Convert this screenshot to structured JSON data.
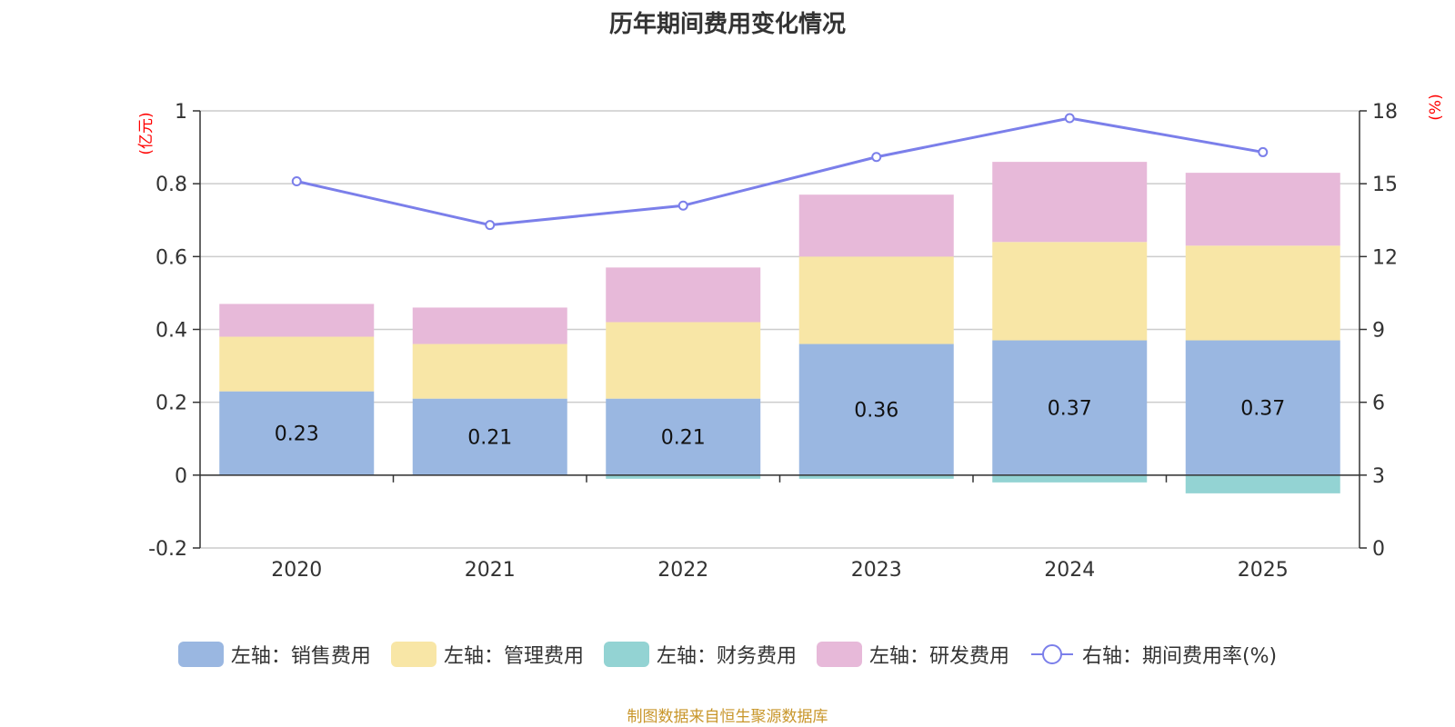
{
  "chart_data": {
    "type": "bar",
    "stacked": true,
    "title": "历年期间费用变化情况",
    "categories": [
      "2020",
      "2021",
      "2022",
      "2023",
      "2024",
      "2025"
    ],
    "left_axis": {
      "unit": "(亿元)",
      "ylim": [
        -0.2,
        1
      ],
      "ticks": [
        "-0.2",
        "0",
        "0.2",
        "0.4",
        "0.6",
        "0.8",
        "1"
      ],
      "tick_values": [
        -0.2,
        0,
        0.2,
        0.4,
        0.6,
        0.8,
        1
      ]
    },
    "right_axis": {
      "unit": "(%)",
      "ylim": [
        0,
        18
      ],
      "ticks": [
        "0",
        "3",
        "6",
        "9",
        "12",
        "15",
        "18"
      ],
      "tick_values": [
        0,
        3,
        6,
        9,
        12,
        15,
        18
      ]
    },
    "series": [
      {
        "name": "左轴：销售费用",
        "axis": "left",
        "type": "bar",
        "color": "#9ab7e1",
        "values": [
          0.23,
          0.21,
          0.21,
          0.36,
          0.37,
          0.37
        ],
        "labels": [
          "0.23",
          "0.21",
          "0.21",
          "0.36",
          "0.37",
          "0.37"
        ]
      },
      {
        "name": "左轴：管理费用",
        "axis": "left",
        "type": "bar",
        "color": "#f8e6a6",
        "values": [
          0.15,
          0.15,
          0.21,
          0.24,
          0.27,
          0.26
        ]
      },
      {
        "name": "左轴：财务费用",
        "axis": "left",
        "type": "bar",
        "color": "#93d3d3",
        "values": [
          0.0,
          0.0,
          -0.01,
          -0.01,
          -0.02,
          -0.05
        ]
      },
      {
        "name": "左轴：研发费用",
        "axis": "left",
        "type": "bar",
        "color": "#e7b9d9",
        "values": [
          0.09,
          0.1,
          0.15,
          0.17,
          0.22,
          0.2
        ]
      },
      {
        "name": "右轴：期间费用率(%)",
        "axis": "right",
        "type": "line",
        "color": "#7b7fea",
        "values": [
          15.1,
          13.3,
          14.1,
          16.1,
          17.7,
          16.3
        ]
      }
    ]
  },
  "source_text": "制图数据来自恒生聚源数据库",
  "colors": {
    "axis_unit": "#ff0000",
    "source": "#c8962a",
    "grid": "#cccccc",
    "axis": "#333333"
  }
}
